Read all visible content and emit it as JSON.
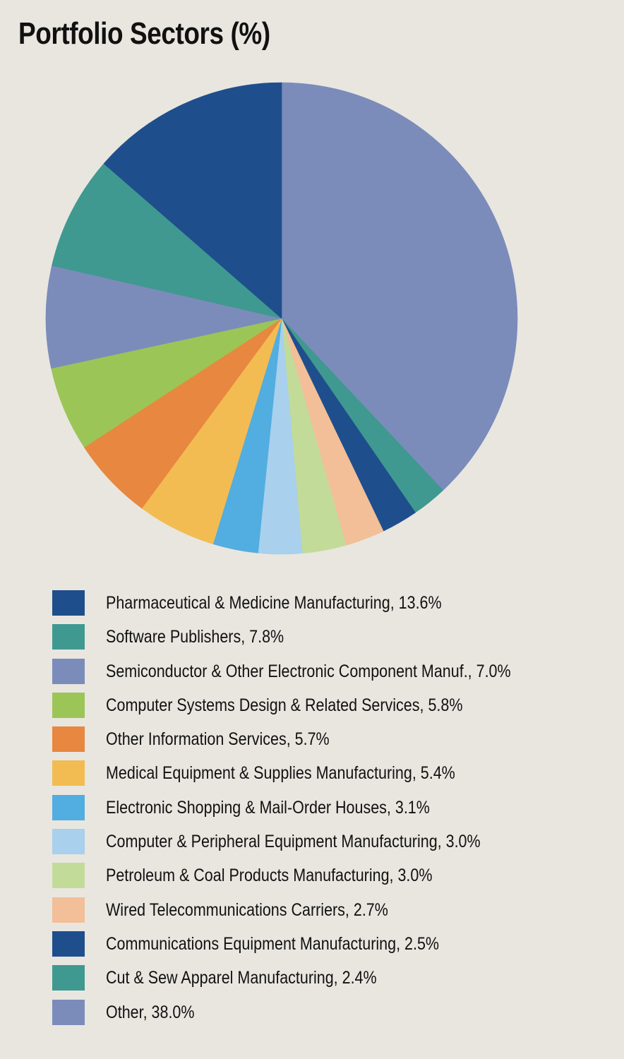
{
  "chart_data": {
    "type": "pie",
    "title": "Portfolio Sectors (%)",
    "slices": [
      {
        "label": "Pharmaceutical & Medicine Manufacturing, 13.6%",
        "value": 13.6,
        "color": "#1f4e8c"
      },
      {
        "label": "Software Publishers, 7.8%",
        "value": 7.8,
        "color": "#3f9990"
      },
      {
        "label": "Semiconductor & Other Electronic Component Manuf., 7.0%",
        "value": 7.0,
        "color": "#7b8cba"
      },
      {
        "label": "Computer Systems Design & Related Services, 5.8%",
        "value": 5.8,
        "color": "#9cc558"
      },
      {
        "label": "Other Information Services, 5.7%",
        "value": 5.7,
        "color": "#e8873f"
      },
      {
        "label": "Medical Equipment & Supplies Manufacturing, 5.4%",
        "value": 5.4,
        "color": "#f2bc52"
      },
      {
        "label": "Electronic Shopping & Mail-Order Houses, 3.1%",
        "value": 3.1,
        "color": "#52ade0"
      },
      {
        "label": "Computer & Peripheral Equipment Manufacturing, 3.0%",
        "value": 3.0,
        "color": "#a9d0ec"
      },
      {
        "label": "Petroleum & Coal Products Manufacturing, 3.0%",
        "value": 3.0,
        "color": "#c3db98"
      },
      {
        "label": "Wired Telecommunications Carriers, 2.7%",
        "value": 2.7,
        "color": "#f2bf98"
      },
      {
        "label": "Communications Equipment Manufacturing, 2.5%",
        "value": 2.5,
        "color": "#1f4e8c"
      },
      {
        "label": "Cut & Sew Apparel Manufacturing, 2.4%",
        "value": 2.4,
        "color": "#3f9990"
      },
      {
        "label": "Other, 38.0%",
        "value": 38.0,
        "color": "#7b8cba"
      }
    ]
  }
}
